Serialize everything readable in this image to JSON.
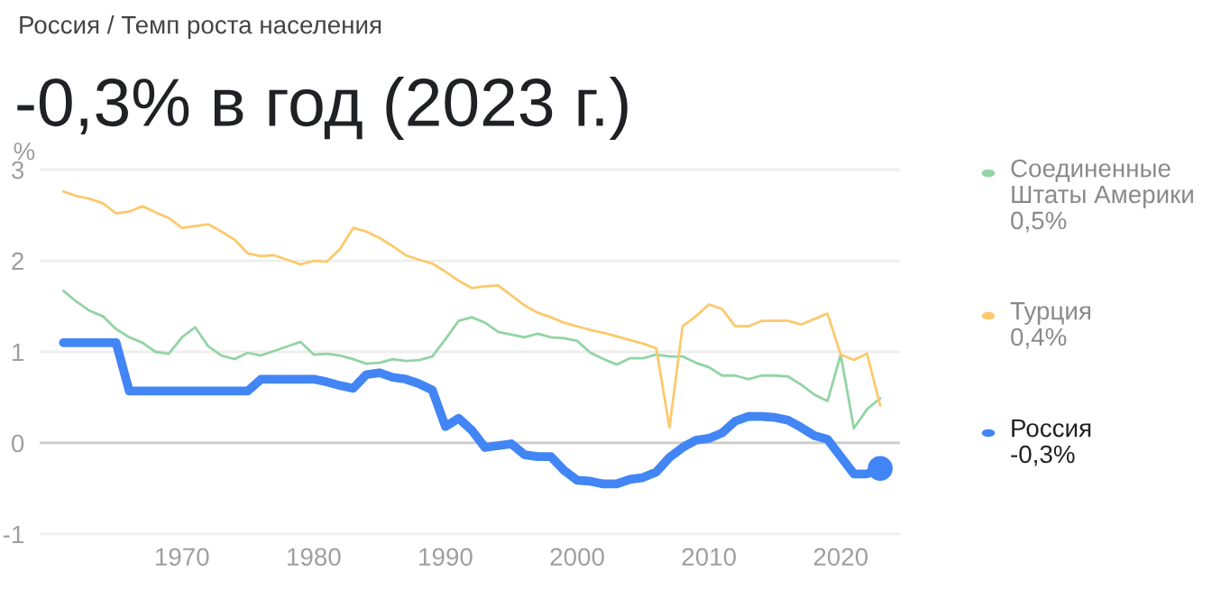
{
  "chart_data": {
    "type": "line",
    "subtitle": "Россия / Темп роста населения",
    "title": "-0,3% в год (2023 г.)",
    "ylabel": "%",
    "x": [
      1961,
      1962,
      1963,
      1964,
      1965,
      1966,
      1967,
      1968,
      1969,
      1970,
      1971,
      1972,
      1973,
      1974,
      1975,
      1976,
      1977,
      1978,
      1979,
      1980,
      1981,
      1982,
      1983,
      1984,
      1985,
      1986,
      1987,
      1988,
      1989,
      1990,
      1991,
      1992,
      1993,
      1994,
      1995,
      1996,
      1997,
      1998,
      1999,
      2000,
      2001,
      2002,
      2003,
      2004,
      2005,
      2006,
      2007,
      2008,
      2009,
      2010,
      2011,
      2012,
      2013,
      2014,
      2015,
      2016,
      2017,
      2018,
      2019,
      2020,
      2021,
      2022,
      2023
    ],
    "series": [
      {
        "name": "Соединенные Штаты Америки",
        "color": "#93d4a4",
        "values": [
          1.67,
          1.55,
          1.45,
          1.39,
          1.25,
          1.16,
          1.1,
          1.0,
          0.98,
          1.16,
          1.27,
          1.06,
          0.96,
          0.92,
          0.99,
          0.96,
          1.01,
          1.06,
          1.11,
          0.97,
          0.98,
          0.96,
          0.92,
          0.87,
          0.88,
          0.92,
          0.9,
          0.91,
          0.95,
          1.14,
          1.34,
          1.38,
          1.32,
          1.22,
          1.19,
          1.16,
          1.2,
          1.16,
          1.15,
          1.12,
          0.99,
          0.92,
          0.86,
          0.93,
          0.93,
          0.97,
          0.95,
          0.95,
          0.88,
          0.83,
          0.74,
          0.74,
          0.7,
          0.74,
          0.74,
          0.73,
          0.64,
          0.53,
          0.46,
          0.97,
          0.16,
          0.37,
          0.49
        ]
      },
      {
        "name": "Турция",
        "color": "#fcc96c",
        "values": [
          2.76,
          2.71,
          2.68,
          2.63,
          2.52,
          2.54,
          2.6,
          2.53,
          2.47,
          2.36,
          2.38,
          2.4,
          2.32,
          2.23,
          2.08,
          2.05,
          2.06,
          2.01,
          1.96,
          2.0,
          1.99,
          2.13,
          2.36,
          2.32,
          2.25,
          2.16,
          2.06,
          2.01,
          1.97,
          1.88,
          1.78,
          1.7,
          1.72,
          1.73,
          1.62,
          1.51,
          1.43,
          1.38,
          1.32,
          1.28,
          1.24,
          1.21,
          1.17,
          1.13,
          1.09,
          1.04,
          0.17,
          1.28,
          1.39,
          1.52,
          1.47,
          1.28,
          1.28,
          1.34,
          1.34,
          1.34,
          1.3,
          1.36,
          1.42,
          0.97,
          0.91,
          0.98,
          0.41
        ]
      },
      {
        "name": "Россия",
        "color": "#4285f4",
        "values": [
          1.1,
          1.1,
          1.1,
          1.1,
          1.1,
          0.57,
          0.57,
          0.57,
          0.57,
          0.57,
          0.57,
          0.57,
          0.57,
          0.57,
          0.57,
          0.7,
          0.7,
          0.7,
          0.7,
          0.7,
          0.67,
          0.63,
          0.6,
          0.75,
          0.77,
          0.72,
          0.7,
          0.65,
          0.58,
          0.18,
          0.27,
          0.14,
          -0.05,
          -0.03,
          -0.01,
          -0.13,
          -0.15,
          -0.15,
          -0.3,
          -0.41,
          -0.42,
          -0.45,
          -0.45,
          -0.4,
          -0.38,
          -0.32,
          -0.16,
          -0.05,
          0.03,
          0.05,
          0.11,
          0.24,
          0.29,
          0.29,
          0.28,
          0.25,
          0.17,
          0.08,
          0.04,
          -0.15,
          -0.34,
          -0.34,
          -0.28
        ]
      }
    ],
    "annotations": [
      "0,5%",
      "0,4%",
      "-0,3%"
    ],
    "xlim": [
      1959.2,
      2024.5
    ],
    "xticks": [
      1970,
      1980,
      1990,
      2000,
      2010,
      2020
    ],
    "ylim": [
      -1.05,
      3.05
    ],
    "yticks": [
      {
        "value": -1,
        "label": "-1"
      },
      0,
      1,
      2,
      3
    ],
    "ref_lines": [
      {
        "axis": "y",
        "value": 0,
        "color": "#cccccc"
      }
    ],
    "grid": "y",
    "legend": "right",
    "line_style": "solid"
  }
}
